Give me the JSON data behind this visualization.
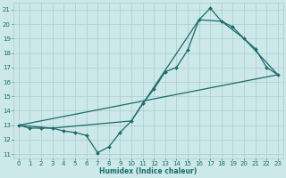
{
  "xlabel": "Humidex (Indice chaleur)",
  "bg_color": "#cce8e8",
  "line_color": "#1a6b6b",
  "grid_color": "#aacccc",
  "xlim": [
    -0.5,
    23.5
  ],
  "ylim": [
    10.7,
    21.5
  ],
  "yticks": [
    11,
    12,
    13,
    14,
    15,
    16,
    17,
    18,
    19,
    20,
    21
  ],
  "xticks": [
    0,
    1,
    2,
    3,
    4,
    5,
    6,
    7,
    8,
    9,
    10,
    11,
    12,
    13,
    14,
    15,
    16,
    17,
    18,
    19,
    20,
    21,
    22,
    23
  ],
  "series1_x": [
    0,
    1,
    2,
    3,
    4,
    5,
    6,
    7,
    8,
    9,
    10,
    11,
    12,
    13,
    14,
    15,
    16,
    17,
    18,
    19,
    20,
    21,
    22,
    23
  ],
  "series1_y": [
    13.0,
    12.8,
    12.8,
    12.8,
    12.6,
    12.5,
    12.3,
    11.1,
    11.5,
    12.5,
    13.3,
    14.5,
    15.5,
    16.7,
    17.0,
    18.2,
    20.3,
    21.1,
    20.2,
    19.8,
    19.0,
    18.3,
    17.0,
    16.5
  ],
  "series2_x": [
    0,
    3,
    10,
    16,
    18,
    20,
    23
  ],
  "series2_y": [
    13.0,
    12.8,
    13.3,
    20.3,
    20.2,
    19.0,
    16.5
  ],
  "series3_x": [
    0,
    23
  ],
  "series3_y": [
    13.0,
    16.5
  ],
  "tick_fontsize": 5,
  "xlabel_fontsize": 5.5,
  "linewidth": 0.9,
  "markersize": 2.0
}
